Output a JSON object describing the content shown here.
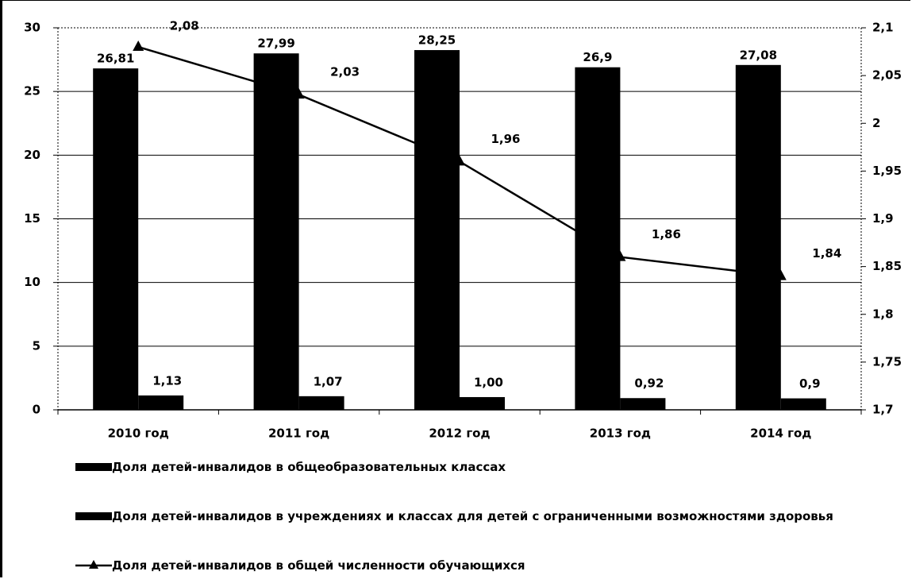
{
  "chart_data": {
    "type": "combo",
    "categories": [
      "2010 год",
      "2011 год",
      "2012 год",
      "2013 год",
      "2014 год"
    ],
    "series": [
      {
        "name": "Доля детей-инвалидов в общеобразовательных классах",
        "type": "bar",
        "color": "#000000",
        "values": [
          26.81,
          27.99,
          28.25,
          26.9,
          27.08
        ],
        "value_labels": [
          "26,81",
          "27,99",
          "28,25",
          "26,9",
          "27,08"
        ]
      },
      {
        "name": "Доля детей-инвалидов в учреждениях и классах для детей с ограниченными возможностями здоровья",
        "type": "bar",
        "color": "#000000",
        "values": [
          1.13,
          1.07,
          1.0,
          0.92,
          0.9
        ],
        "value_labels": [
          "1,13",
          "1,07",
          "1,00",
          "0,92",
          "0,9"
        ]
      },
      {
        "name": "Доля детей-инвалидов в общей численности обучающихся",
        "type": "line",
        "axis": "y2",
        "color": "#000000",
        "values": [
          2.08,
          2.03,
          1.96,
          1.86,
          1.84
        ],
        "value_labels": [
          "2,08",
          "2,03",
          "1,96",
          "1,86",
          "1,84"
        ]
      }
    ],
    "ylim": [
      0,
      30
    ],
    "yticks": [
      0,
      5,
      10,
      15,
      20,
      25,
      30
    ],
    "y2lim": [
      1.7,
      2.1
    ],
    "y2ticks": [
      {
        "value": 1.7,
        "label": "1,7"
      },
      {
        "value": 1.75,
        "label": "1,75"
      },
      {
        "value": 1.8,
        "label": "1,8"
      },
      {
        "value": 1.85,
        "label": "1,85"
      },
      {
        "value": 1.9,
        "label": "1,9"
      },
      {
        "value": 1.95,
        "label": "1,95"
      },
      2,
      {
        "value": 2.05,
        "label": "2,05"
      },
      {
        "value": 2.1,
        "label": "2,1"
      }
    ],
    "grid": true,
    "legend": "bottom"
  }
}
